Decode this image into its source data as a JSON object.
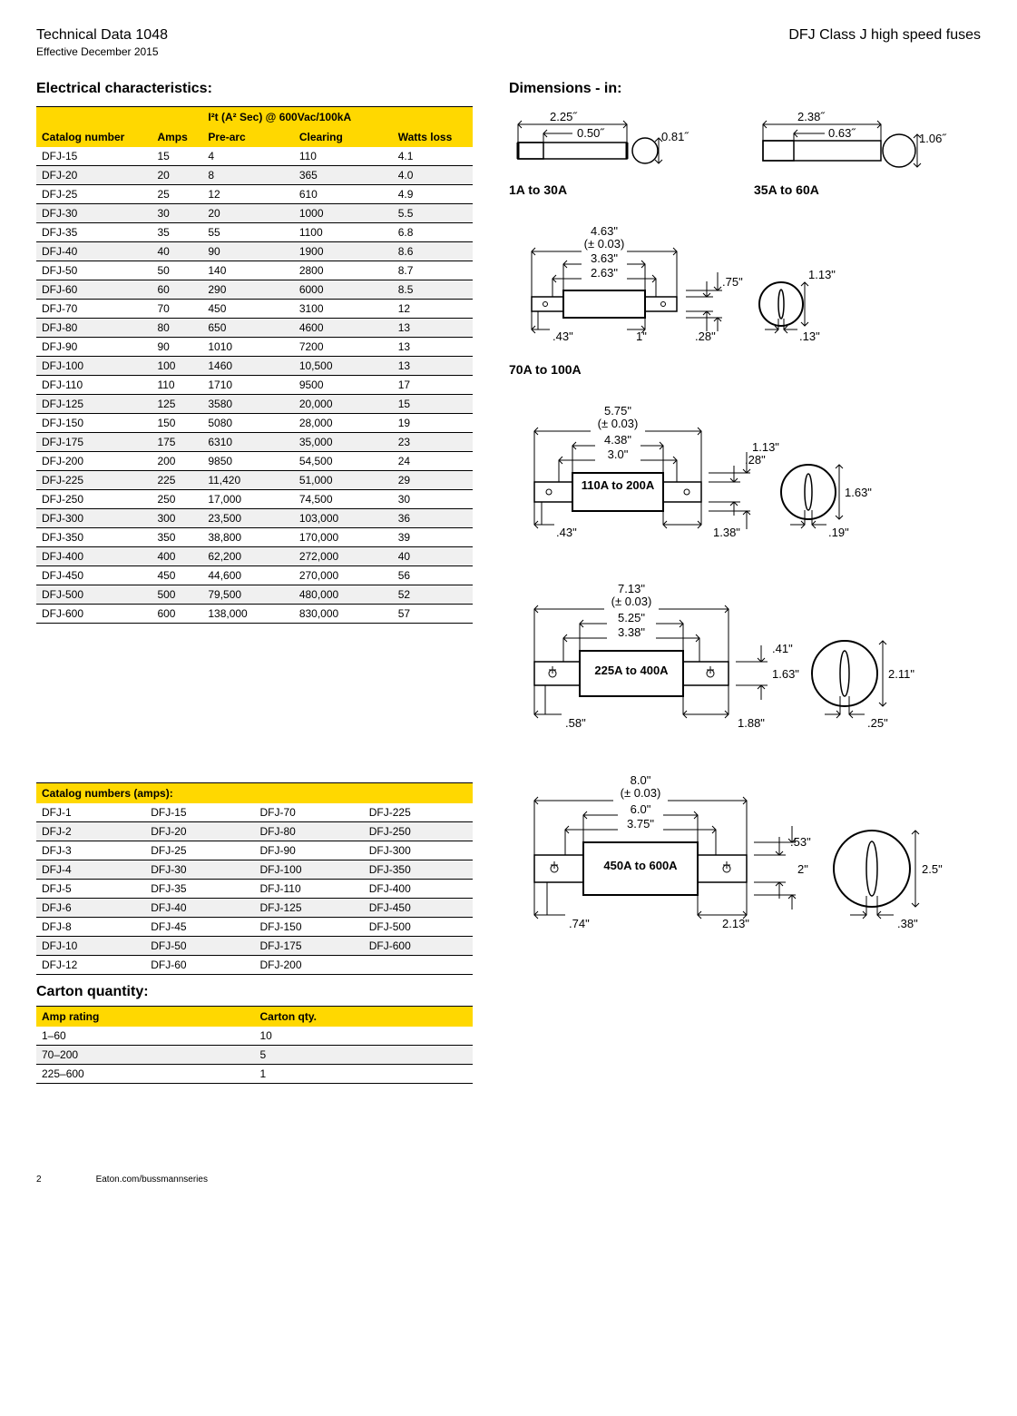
{
  "header": {
    "docNumber": "Technical Data 1048",
    "effective": "Effective December 2015",
    "productTitle": "DFJ Class J high speed fuses"
  },
  "electrical": {
    "title": "Electrical characteristics:",
    "header": {
      "catalog": "Catalog number",
      "amps": "Amps",
      "i2t": "I²t (A² Sec) @ 600Vac/100kA",
      "prearc": "Pre-arc",
      "clearing": "Clearing",
      "watts": "Watts loss"
    },
    "rows": [
      {
        "cn": "DFJ-15",
        "a": "15",
        "p": "4",
        "c": "110",
        "w": "4.1"
      },
      {
        "cn": "DFJ-20",
        "a": "20",
        "p": "8",
        "c": "365",
        "w": "4.0"
      },
      {
        "cn": "DFJ-25",
        "a": "25",
        "p": "12",
        "c": "610",
        "w": "4.9"
      },
      {
        "cn": "DFJ-30",
        "a": "30",
        "p": "20",
        "c": "1000",
        "w": "5.5"
      },
      {
        "cn": "DFJ-35",
        "a": "35",
        "p": "55",
        "c": "1100",
        "w": "6.8"
      },
      {
        "cn": "DFJ-40",
        "a": "40",
        "p": "90",
        "c": "1900",
        "w": "8.6"
      },
      {
        "cn": "DFJ-50",
        "a": "50",
        "p": "140",
        "c": "2800",
        "w": "8.7"
      },
      {
        "cn": "DFJ-60",
        "a": "60",
        "p": "290",
        "c": "6000",
        "w": "8.5"
      },
      {
        "cn": "DFJ-70",
        "a": "70",
        "p": "450",
        "c": "3100",
        "w": "12"
      },
      {
        "cn": "DFJ-80",
        "a": "80",
        "p": "650",
        "c": "4600",
        "w": "13"
      },
      {
        "cn": "DFJ-90",
        "a": "90",
        "p": "1010",
        "c": "7200",
        "w": "13"
      },
      {
        "cn": "DFJ-100",
        "a": "100",
        "p": "1460",
        "c": "10,500",
        "w": "13"
      },
      {
        "cn": "DFJ-110",
        "a": "110",
        "p": "1710",
        "c": "9500",
        "w": "17"
      },
      {
        "cn": "DFJ-125",
        "a": "125",
        "p": "3580",
        "c": "20,000",
        "w": "15"
      },
      {
        "cn": "DFJ-150",
        "a": "150",
        "p": "5080",
        "c": "28,000",
        "w": "19"
      },
      {
        "cn": "DFJ-175",
        "a": "175",
        "p": "6310",
        "c": "35,000",
        "w": "23"
      },
      {
        "cn": "DFJ-200",
        "a": "200",
        "p": "9850",
        "c": "54,500",
        "w": "24"
      },
      {
        "cn": "DFJ-225",
        "a": "225",
        "p": "11,420",
        "c": "51,000",
        "w": "29"
      },
      {
        "cn": "DFJ-250",
        "a": "250",
        "p": "17,000",
        "c": "74,500",
        "w": "30"
      },
      {
        "cn": "DFJ-300",
        "a": "300",
        "p": "23,500",
        "c": "103,000",
        "w": "36"
      },
      {
        "cn": "DFJ-350",
        "a": "350",
        "p": "38,800",
        "c": "170,000",
        "w": "39"
      },
      {
        "cn": "DFJ-400",
        "a": "400",
        "p": "62,200",
        "c": "272,000",
        "w": "40"
      },
      {
        "cn": "DFJ-450",
        "a": "450",
        "p": "44,600",
        "c": "270,000",
        "w": "56"
      },
      {
        "cn": "DFJ-500",
        "a": "500",
        "p": "79,500",
        "c": "480,000",
        "w": "52"
      },
      {
        "cn": "DFJ-600",
        "a": "600",
        "p": "138,000",
        "c": "830,000",
        "w": "57"
      }
    ]
  },
  "catalog": {
    "title": "Catalog numbers (amps):",
    "rows": [
      [
        "DFJ-1",
        "DFJ-15",
        "DFJ-70",
        "DFJ-225"
      ],
      [
        "DFJ-2",
        "DFJ-20",
        "DFJ-80",
        "DFJ-250"
      ],
      [
        "DFJ-3",
        "DFJ-25",
        "DFJ-90",
        "DFJ-300"
      ],
      [
        "DFJ-4",
        "DFJ-30",
        "DFJ-100",
        "DFJ-350"
      ],
      [
        "DFJ-5",
        "DFJ-35",
        "DFJ-110",
        "DFJ-400"
      ],
      [
        "DFJ-6",
        "DFJ-40",
        "DFJ-125",
        "DFJ-450"
      ],
      [
        "DFJ-8",
        "DFJ-45",
        "DFJ-150",
        "DFJ-500"
      ],
      [
        "DFJ-10",
        "DFJ-50",
        "DFJ-175",
        "DFJ-600"
      ],
      [
        "DFJ-12",
        "DFJ-60",
        "DFJ-200",
        ""
      ]
    ]
  },
  "carton": {
    "title": "Carton quantity:",
    "header": {
      "amp": "Amp rating",
      "qty": "Carton qty."
    },
    "rows": [
      {
        "a": "1–60",
        "q": "10"
      },
      {
        "a": "70–200",
        "q": "5"
      },
      {
        "a": "225–600",
        "q": "1"
      }
    ]
  },
  "dimensions": {
    "title": "Dimensions - in:",
    "d1": {
      "label": "1A to 30A",
      "l": "2.25˝",
      "cap": "0.50˝",
      "d": "0.81˝"
    },
    "d2": {
      "label": "35A to 60A",
      "l": "2.38˝",
      "cap": "0.63˝",
      "d": "1.06˝"
    },
    "d3": {
      "label": "70A to 100A",
      "ol": "4.63\"",
      "tol": "(± 0.03)",
      "body": "3.63\"",
      "blade": "2.63\"",
      "t": ".43\"",
      "bw": "1\"",
      "slot": ".28\"",
      "h": ".75\"",
      "od": "1.13\"",
      "id": ".13\""
    },
    "d4": {
      "label": "110A to 200A",
      "ol": "5.75\"",
      "tol": "(± 0.03)",
      "body": "4.38\"",
      "blade": "3.0\"",
      "t": ".43\"",
      "slot": ".28\"",
      "h": "1.13\"",
      "bw": "1.38\"",
      "od": "1.63\"",
      "id": ".19\""
    },
    "d5": {
      "label": "225A to 400A",
      "ol": "7.13\"",
      "tol": "(± 0.03)",
      "body": "5.25\"",
      "blade": "3.38\"",
      "t": ".58\"",
      "slot": ".41\"",
      "h": "1.63\"",
      "bw": "1.88\"",
      "od": "2.11\"",
      "id": ".25\""
    },
    "d6": {
      "label": "450A to 600A",
      "ol": "8.0\"",
      "tol": "(± 0.03)",
      "body": "6.0\"",
      "blade": "3.75\"",
      "t": ".74\"",
      "slot": ".53\"",
      "h": "2\"",
      "bw": "2.13\"",
      "od": "2.5\"",
      "id": ".38\""
    }
  },
  "footer": {
    "page": "2",
    "url": "Eaton.com/bussmannseries"
  }
}
